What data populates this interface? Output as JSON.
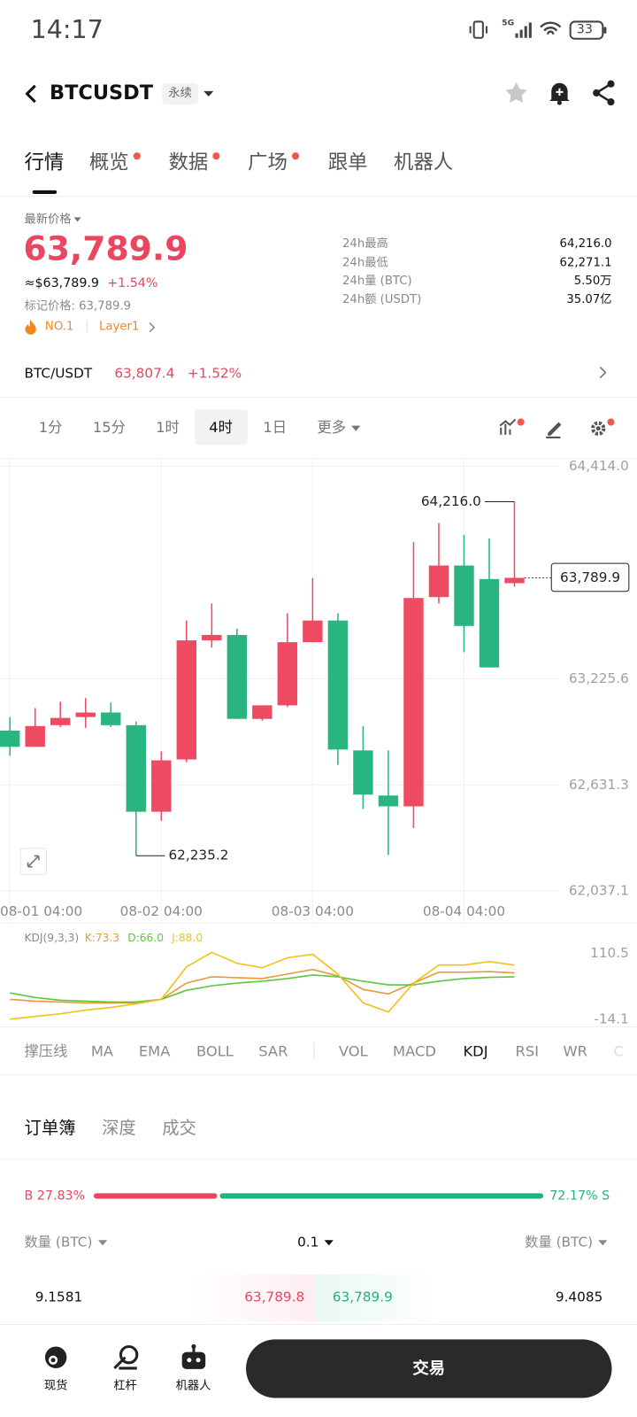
{
  "status": {
    "time": "14:17",
    "network": "5G",
    "battery": "33"
  },
  "header": {
    "symbol": "BTCUSDT",
    "tag": "永续"
  },
  "tabs": [
    "行情",
    "概览",
    "数据",
    "广场",
    "跟单",
    "机器人"
  ],
  "price": {
    "label": "最新价格",
    "last": "63,789.9",
    "usd": "≈$63,789.9",
    "change": "+1.54%",
    "mark": "标记价格: 63,789.9",
    "rank": "NO.1",
    "sector": "Layer1"
  },
  "stats": [
    {
      "label": "24h最高",
      "value": "64,216.0"
    },
    {
      "label": "24h最低",
      "value": "62,271.1"
    },
    {
      "label": "24h量 (BTC)",
      "value": "5.50万"
    },
    {
      "label": "24h额 (USDT)",
      "value": "35.07亿"
    }
  ],
  "spot": {
    "pair": "BTC/USDT",
    "price": "63,807.4",
    "change": "+1.52%"
  },
  "intervals": [
    "1分",
    "15分",
    "1时",
    "4时",
    "1日",
    "更多"
  ],
  "chart_data": [
    {
      "type": "candlestick",
      "categories": [
        "08-01 04:00",
        null,
        null,
        null,
        null,
        null,
        "08-02 04:00",
        null,
        null,
        null,
        null,
        null,
        "08-03 04:00",
        null,
        null,
        null,
        null,
        null,
        "08-04 04:00",
        null,
        null
      ],
      "open": [
        62935.2,
        62844.4,
        62965.5,
        63010.9,
        63036.2,
        62965.5,
        62481.0,
        62773.7,
        63439.9,
        63470.2,
        63000.8,
        63076.5,
        63429.8,
        63551.0,
        62824.2,
        62571.8,
        62511.3,
        63682.2,
        63858.8,
        63783.1,
        63760.0
      ],
      "high": [
        63010.9,
        63061.4,
        63096.7,
        63116.9,
        63091.7,
        62985.7,
        62819.1,
        63551.0,
        63646.9,
        63505.5,
        63076.5,
        63591.3,
        63788.2,
        63591.3,
        62960.5,
        62824.2,
        63990.0,
        64096.0,
        64030.4,
        64010.2,
        64216.0
      ],
      "low": [
        62793.9,
        62844.4,
        62955.4,
        62950.4,
        62955.4,
        62235.2,
        62430.5,
        62758.6,
        63399.6,
        63000.8,
        62990.7,
        63066.5,
        63429.8,
        62743.4,
        62496.1,
        62238.7,
        62390.2,
        63646.9,
        63374.3,
        63288.5,
        63740.0
      ],
      "close": [
        62844.4,
        62960.5,
        63005.9,
        63036.2,
        62965.5,
        62481.0,
        62768.7,
        63439.9,
        63470.2,
        63000.8,
        63076.5,
        63429.8,
        63551.0,
        62829.2,
        62576.9,
        62511.3,
        63677.1,
        63858.8,
        63520.7,
        63288.5,
        63789.9
      ],
      "up_color": "#ee4a62",
      "down_color": "#28b57f",
      "ylim": [
        62037.1,
        64414.0
      ],
      "yticks": [
        {
          "value": 64414.0,
          "label": "64,414.0"
        },
        {
          "value": 63225.6,
          "label": "63,225.6"
        },
        {
          "value": 62631.3,
          "label": "62,631.3"
        },
        {
          "value": 62037.1,
          "label": "62,037.1"
        }
      ],
      "grid": true,
      "annotations": [
        {
          "value": 64216.0,
          "label": "64,216.0"
        },
        {
          "value": 62235.2,
          "label": "62,235.2"
        },
        {
          "value": 63789.9,
          "label": "63,789.9"
        }
      ]
    },
    {
      "type": "line",
      "title": "KDJ(9,3,3)",
      "series": [
        {
          "name": "K:73.3",
          "color": "#e89a3c",
          "values": [
            23.4,
            20.0,
            18.3,
            16.6,
            16.6,
            16.6,
            23.4,
            54.2,
            66.1,
            64.4,
            62.7,
            71.2,
            79.8,
            67.8,
            42.2,
            33.7,
            54.2,
            74.7,
            74.7,
            76.0,
            73.3
          ]
        },
        {
          "name": "D:66.0",
          "color": "#5cc83a",
          "values": [
            35.4,
            26.9,
            21.7,
            20.0,
            18.3,
            18.3,
            23.4,
            40.5,
            49.0,
            54.2,
            57.6,
            62.7,
            69.5,
            66.1,
            57.6,
            50.8,
            50.8,
            57.6,
            62.7,
            65.0,
            66.0
          ]
        },
        {
          "name": "J:88.0",
          "color": "#f2c21b",
          "values": [
            -14.1,
            -9.0,
            -3.9,
            3.0,
            8.1,
            14.9,
            23.4,
            84.9,
            112.2,
            91.7,
            83.2,
            102.0,
            108.8,
            71.2,
            16.6,
            -0.5,
            54.2,
            88.3,
            88.3,
            95.0,
            88.0
          ]
        }
      ],
      "ylim": [
        -27.8,
        165.1
      ],
      "yticks": [
        110.5,
        -14.1
      ]
    }
  ],
  "indicators": [
    "撑压线",
    "MA",
    "EMA",
    "BOLL",
    "SAR",
    "VOL",
    "MACD",
    "KDJ",
    "RSI",
    "WR"
  ],
  "orderbook": {
    "tabs": [
      "订单簿",
      "深度",
      "成交"
    ],
    "ratio": {
      "buy": {
        "value": 27.83,
        "label": "B 27.83%"
      },
      "sell": {
        "value": 72.17,
        "label": "72.17% S"
      }
    },
    "columns": [
      "数量 (BTC)",
      "0.1",
      "数量 (BTC)"
    ],
    "row": [
      "9.1581",
      "63,789.8",
      "63,789.9",
      "9.4085"
    ]
  },
  "nav": [
    "现货",
    "杠杆",
    "机器人"
  ],
  "trade": "交易"
}
